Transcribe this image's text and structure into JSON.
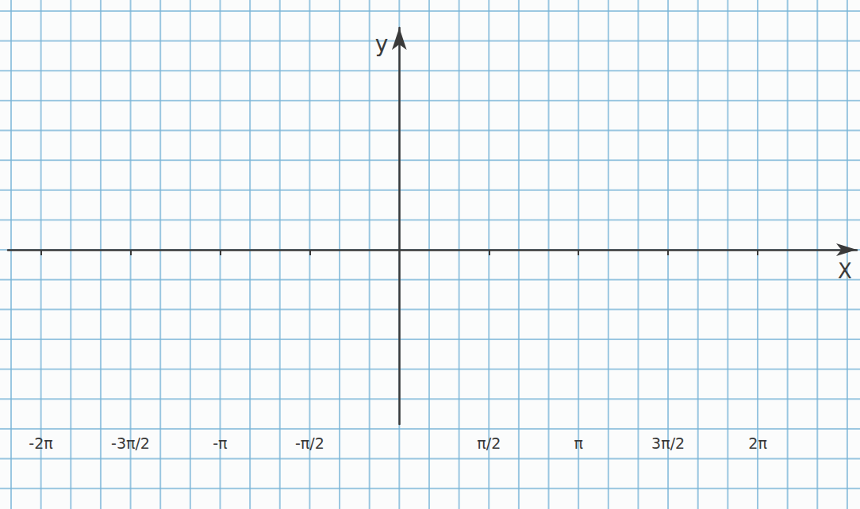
{
  "chart_data": {
    "type": "line",
    "x_label": "X",
    "y_label": "y",
    "x": [],
    "values": [],
    "xlim": [
      -6.86,
      8.02
    ],
    "ylim": [
      -5.84,
      7.43
    ],
    "xticks": [
      {
        "value": -6.283,
        "label": "-2π"
      },
      {
        "value": -4.712,
        "label": "-3π/2"
      },
      {
        "value": -3.142,
        "label": "-π"
      },
      {
        "value": -1.571,
        "label": "-π/2"
      },
      {
        "value": 1.571,
        "label": "π/2"
      },
      {
        "value": 3.142,
        "label": "π"
      },
      {
        "value": 4.712,
        "label": "3π/2"
      },
      {
        "value": 6.283,
        "label": "2π"
      }
    ],
    "yticks": [],
    "tick_labels": "x",
    "grid": true
  }
}
